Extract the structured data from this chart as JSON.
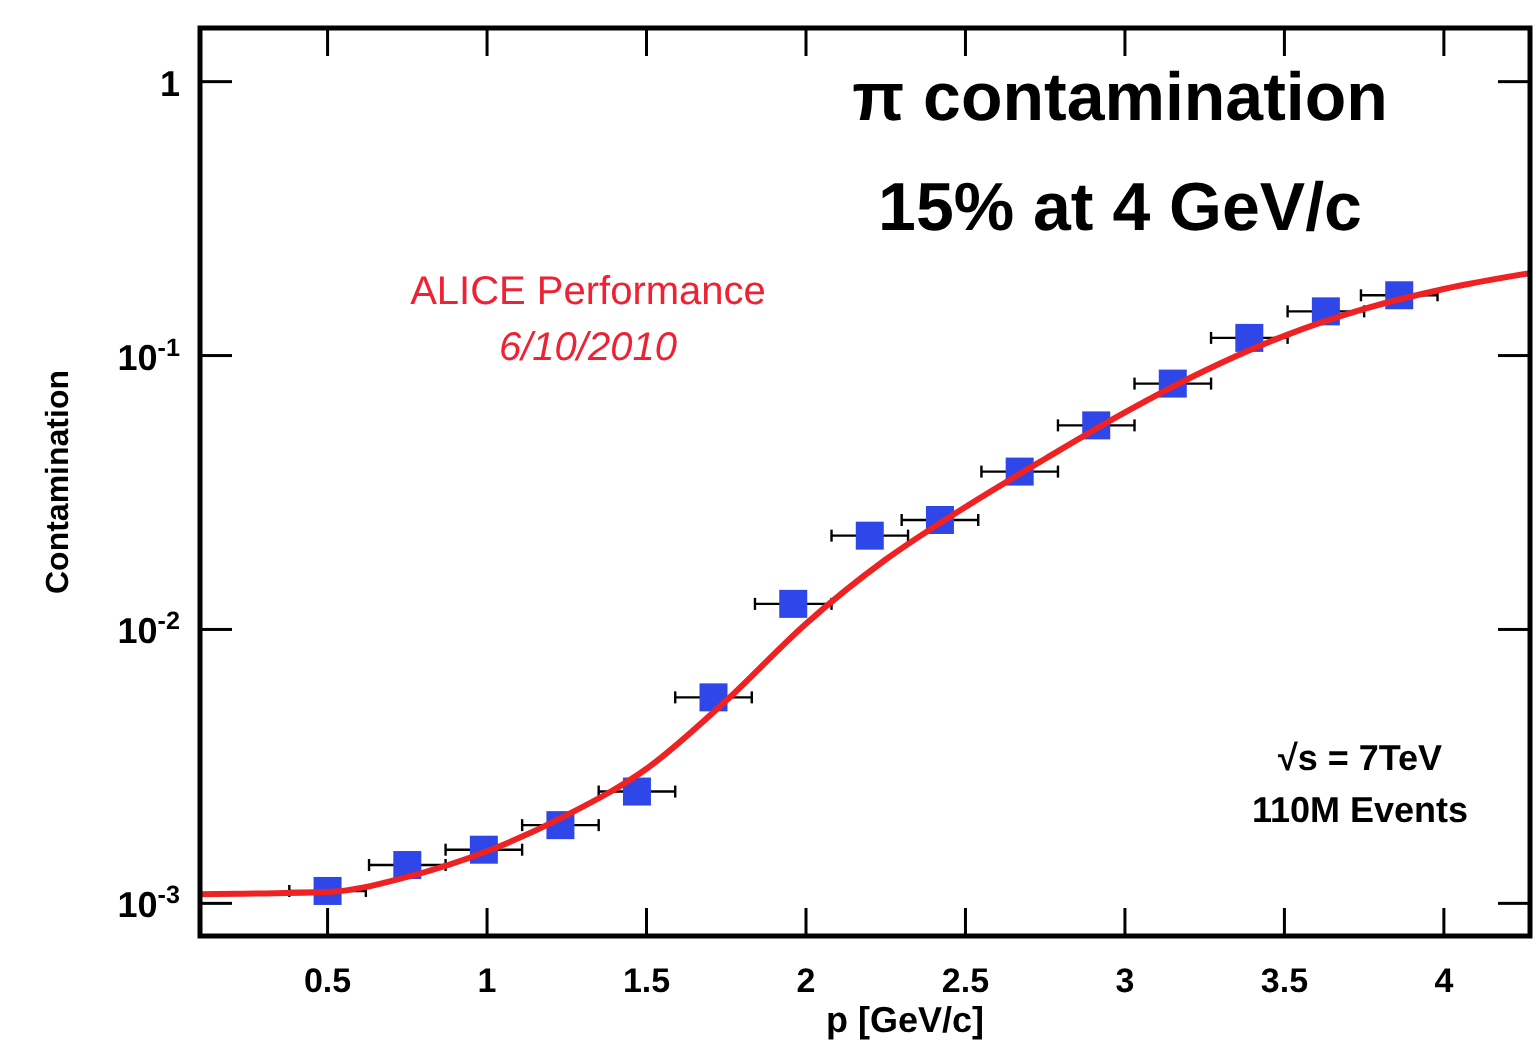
{
  "chart_data": {
    "type": "scatter",
    "xlabel": "p [GeV/c]",
    "ylabel": "Contamination",
    "log": "y",
    "xlim": [
      0.1,
      4.27
    ],
    "xticks": [
      {
        "value": 0.5,
        "label": "0.5"
      },
      1,
      {
        "value": 1.5,
        "label": "1.5"
      },
      2,
      {
        "value": 2.5,
        "label": "2.5"
      },
      3,
      {
        "value": 3.5,
        "label": "3.5"
      },
      4
    ],
    "ylim": [
      0.00076,
      1.57
    ],
    "yticks": [
      {
        "value": 0.001,
        "label": "10$^{-3}$"
      },
      {
        "value": 0.01,
        "label": "10$^{-2}$"
      },
      {
        "value": 0.1,
        "label": "10$^{-1}$"
      },
      1
    ],
    "grid": false,
    "series": [
      {
        "color": "#2f47e8",
        "marker": "square",
        "x": [
          0.5,
          0.75,
          0.99,
          1.23,
          1.47,
          1.71,
          1.96,
          2.2,
          2.42,
          2.67,
          2.91,
          3.15,
          3.39,
          3.63,
          3.86
        ],
        "values": [
          0.00111,
          0.00138,
          0.00157,
          0.00193,
          0.00256,
          0.00565,
          0.0124,
          0.022,
          0.0251,
          0.0377,
          0.0556,
          0.079,
          0.116,
          0.145,
          0.166
        ],
        "xerrors": [
          0.12,
          0.12,
          0.12,
          0.12,
          0.12,
          0.12,
          0.12,
          0.12,
          0.12,
          0.12,
          0.12,
          0.12,
          0.12,
          0.12,
          0.12
        ]
      },
      {
        "type": "line",
        "color": "#ee2222",
        "line_style": "solid",
        "x": [
          0.1,
          0.5,
          0.75,
          1,
          1.25,
          1.5,
          1.75,
          2,
          2.25,
          2.5,
          2.75,
          3,
          3.25,
          3.5,
          3.75,
          4,
          4.27
        ],
        "values": [
          0.00108,
          0.0011,
          0.00125,
          0.00155,
          0.0021,
          0.0031,
          0.0055,
          0.0105,
          0.018,
          0.028,
          0.042,
          0.062,
          0.088,
          0.118,
          0.148,
          0.175,
          0.2
        ]
      }
    ],
    "annotations": [
      "π contamination",
      "15% at 4 GeV/c",
      "ALICE Performance",
      "6/10/2010",
      "√s = 7TeV",
      "110M Events"
    ]
  }
}
